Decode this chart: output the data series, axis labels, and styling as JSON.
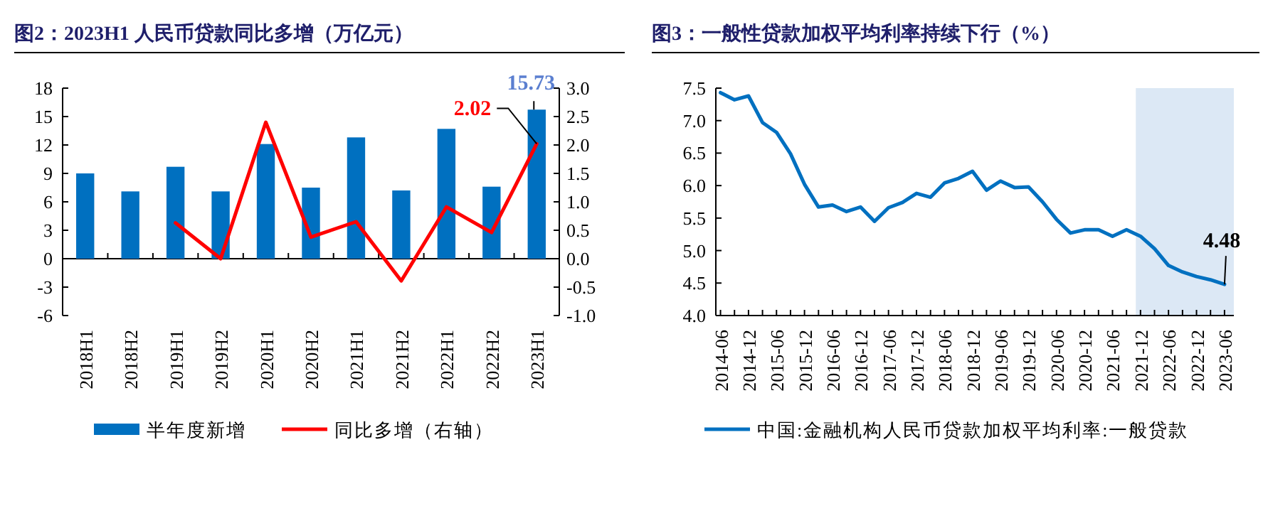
{
  "chart_data": [
    {
      "type": "bar",
      "title": "图2：2023H1 人民币贷款同比多增（万亿元）",
      "categories": [
        "2018H1",
        "2018H2",
        "2019H1",
        "2019H2",
        "2020H1",
        "2020H2",
        "2021H1",
        "2021H2",
        "2022H1",
        "2022H2",
        "2023H1"
      ],
      "series": [
        {
          "name": "半年度新增",
          "color": "#0070c0",
          "values": [
            9.0,
            7.1,
            9.7,
            7.1,
            12.1,
            7.5,
            12.8,
            7.2,
            13.7,
            7.6,
            15.73
          ],
          "value_labels": [
            null,
            null,
            null,
            null,
            null,
            null,
            null,
            null,
            null,
            null,
            "15.73"
          ]
        },
        {
          "name": "同比多增（右轴）",
          "type": "line",
          "axis": "y2",
          "color": "#ff0000",
          "values": [
            null,
            null,
            0.63,
            0.0,
            2.4,
            0.38,
            0.65,
            -0.39,
            0.91,
            0.46,
            2.02
          ],
          "value_labels": [
            null,
            null,
            null,
            null,
            null,
            null,
            null,
            null,
            null,
            null,
            "2.02"
          ]
        }
      ],
      "ylim": [
        -6,
        18
      ],
      "yticks": [
        -6,
        -3,
        0,
        3,
        6,
        9,
        12,
        15,
        18
      ],
      "y2lim": [
        -1.0,
        3.0
      ],
      "y2ticks": [
        {
          "value": -1,
          "label": "-1.0"
        },
        {
          "value": -0.5,
          "label": "-0.5"
        },
        {
          "value": 0,
          "label": "0.0"
        },
        {
          "value": 0.5,
          "label": "0.5"
        },
        {
          "value": 1,
          "label": "1.0"
        },
        {
          "value": 1.5,
          "label": "1.5"
        },
        {
          "value": 2,
          "label": "2.0"
        },
        {
          "value": 2.5,
          "label": "2.5"
        },
        {
          "value": 3,
          "label": "3.0"
        }
      ],
      "legend": "bottom"
    },
    {
      "type": "line",
      "title": "图3：一般性贷款加权平均利率持续下行（%）",
      "x": [
        "2014-06",
        "2014-09",
        "2014-12",
        "2015-03",
        "2015-06",
        "2015-09",
        "2015-12",
        "2016-03",
        "2016-06",
        "2016-09",
        "2016-12",
        "2017-03",
        "2017-06",
        "2017-09",
        "2017-12",
        "2018-03",
        "2018-06",
        "2018-09",
        "2018-12",
        "2019-03",
        "2019-06",
        "2019-09",
        "2019-12",
        "2020-03",
        "2020-06",
        "2020-09",
        "2020-12",
        "2021-03",
        "2021-06",
        "2021-09",
        "2021-12",
        "2022-03",
        "2022-06",
        "2022-09",
        "2022-12",
        "2023-03",
        "2023-06"
      ],
      "series": [
        {
          "name": "中国:金融机构人民币贷款加权平均利率:一般贷款",
          "color": "#0070c0",
          "values": [
            7.43,
            7.32,
            7.38,
            6.97,
            6.82,
            6.49,
            6.02,
            5.67,
            5.7,
            5.6,
            5.67,
            5.45,
            5.66,
            5.74,
            5.88,
            5.82,
            6.04,
            6.11,
            6.22,
            5.93,
            6.07,
            5.97,
            5.98,
            5.75,
            5.48,
            5.27,
            5.32,
            5.32,
            5.22,
            5.32,
            5.22,
            5.03,
            4.77,
            4.67,
            4.6,
            4.55,
            4.48
          ],
          "value_labels": [
            null,
            null,
            null,
            null,
            null,
            null,
            null,
            null,
            null,
            null,
            null,
            null,
            null,
            null,
            null,
            null,
            null,
            null,
            null,
            null,
            null,
            null,
            null,
            null,
            null,
            null,
            null,
            null,
            null,
            null,
            null,
            null,
            null,
            null,
            null,
            null,
            "4.48"
          ]
        }
      ],
      "xlim": [
        "2014-05",
        "2023-08"
      ],
      "xticks": [
        "2014-06",
        {
          "value": "2014-09",
          "label": null
        },
        "2014-12",
        {
          "value": "2015-03",
          "label": null
        },
        "2015-06",
        {
          "value": "2015-09",
          "label": null
        },
        "2015-12",
        {
          "value": "2016-03",
          "label": null
        },
        "2016-06",
        {
          "value": "2016-09",
          "label": null
        },
        "2016-12",
        {
          "value": "2017-03",
          "label": null
        },
        "2017-06",
        {
          "value": "2017-09",
          "label": null
        },
        "2017-12",
        {
          "value": "2018-03",
          "label": null
        },
        "2018-06",
        {
          "value": "2018-09",
          "label": null
        },
        "2018-12",
        {
          "value": "2019-03",
          "label": null
        },
        "2019-06",
        {
          "value": "2019-09",
          "label": null
        },
        "2019-12",
        {
          "value": "2020-03",
          "label": null
        },
        "2020-06",
        {
          "value": "2020-09",
          "label": null
        },
        "2020-12",
        {
          "value": "2021-03",
          "label": null
        },
        "2021-06",
        {
          "value": "2021-09",
          "label": null
        },
        "2021-12",
        {
          "value": "2022-03",
          "label": null
        },
        "2022-06",
        {
          "value": "2022-09",
          "label": null
        },
        "2022-12",
        {
          "value": "2023-03",
          "label": null
        },
        "2023-06"
      ],
      "ylim": [
        4.0,
        7.5
      ],
      "yticks": [
        {
          "value": 4,
          "label": "4.0"
        },
        {
          "value": 4.5,
          "label": "4.5"
        },
        {
          "value": 5,
          "label": "5.0"
        },
        {
          "value": 5.5,
          "label": "5.5"
        },
        {
          "value": 6,
          "label": "6.0"
        },
        {
          "value": 6.5,
          "label": "6.5"
        },
        {
          "value": 7,
          "label": "7.0"
        },
        {
          "value": 7.5,
          "label": "7.5"
        }
      ],
      "bands": [
        {
          "axis": "x",
          "from": "2021-11",
          "to": "2023-08",
          "color": "#dce8f5"
        }
      ],
      "grid": false,
      "legend": "bottom"
    }
  ]
}
